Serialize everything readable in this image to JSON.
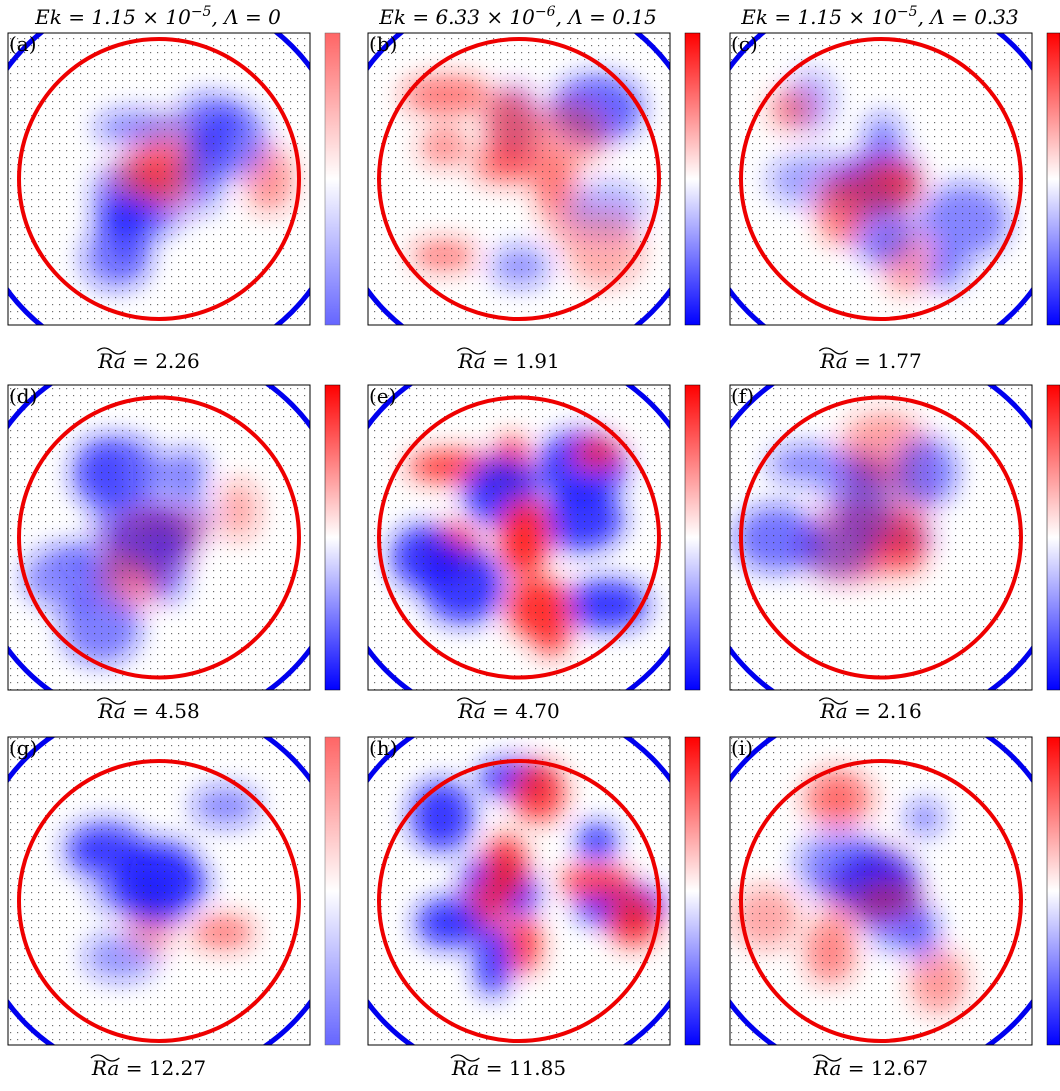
{
  "caption_symbol": "Ra",
  "columns": [
    {
      "title_base": "Ek = 1.15 × 10",
      "title_exp": "−5",
      "title_rest": ", Λ = 0"
    },
    {
      "title_base": "Ek = 6.33 × 10",
      "title_exp": "−6",
      "title_rest": ", Λ = 0.15"
    },
    {
      "title_base": "Ek = 1.15 × 10",
      "title_exp": "−5",
      "title_rest": ", Λ = 0.33"
    }
  ],
  "panels": [
    {
      "label": "(a)",
      "caption": "= 2.26"
    },
    {
      "label": "(b)",
      "caption": "= 1.91"
    },
    {
      "label": "(c)",
      "caption": "= 1.77"
    },
    {
      "label": "(d)",
      "caption": "= 4.58"
    },
    {
      "label": "(e)",
      "caption": "= 4.70"
    },
    {
      "label": "(f)",
      "caption": "= 2.16"
    },
    {
      "label": "(g)",
      "caption": "= 12.27"
    },
    {
      "label": "(h)",
      "caption": "= 11.85"
    },
    {
      "label": "(i)",
      "caption": "= 12.67"
    }
  ]
}
